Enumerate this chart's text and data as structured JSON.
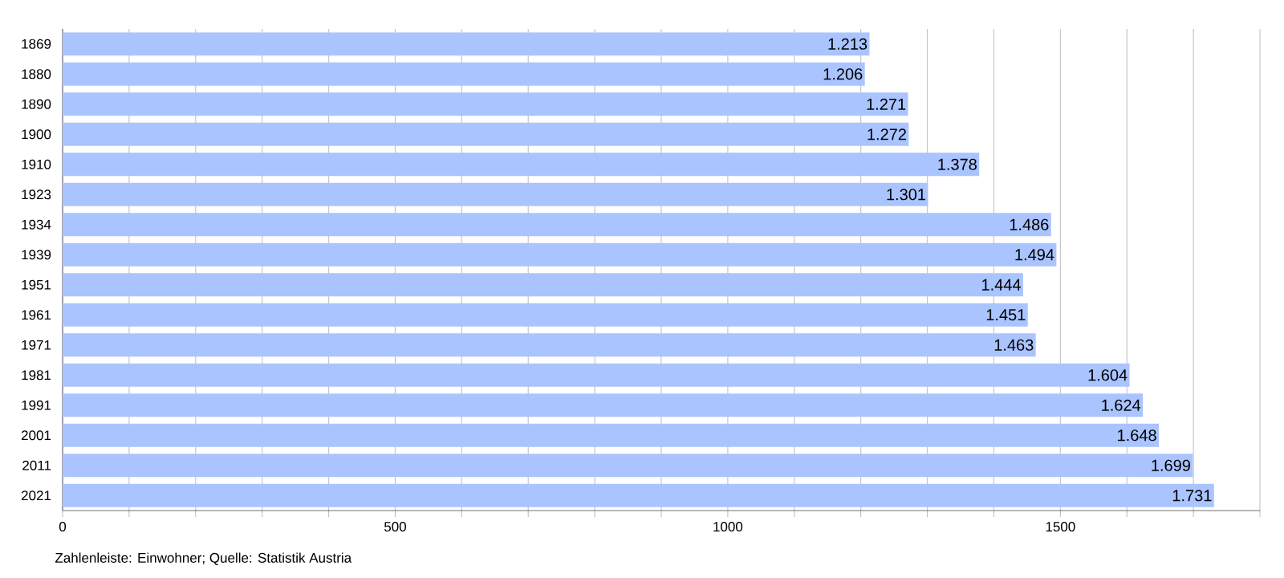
{
  "chart_data": {
    "type": "bar",
    "orientation": "horizontal",
    "categories": [
      "1869",
      "1880",
      "1890",
      "1900",
      "1910",
      "1923",
      "1934",
      "1939",
      "1951",
      "1961",
      "1971",
      "1981",
      "1991",
      "2001",
      "2011",
      "2021"
    ],
    "values": [
      1213,
      1206,
      1271,
      1272,
      1378,
      1301,
      1486,
      1494,
      1444,
      1451,
      1463,
      1604,
      1624,
      1648,
      1699,
      1731
    ],
    "value_labels": [
      "1.213",
      "1.206",
      "1.271",
      "1.272",
      "1.378",
      "1.301",
      "1.486",
      "1.494",
      "1.444",
      "1.451",
      "1.463",
      "1.604",
      "1.624",
      "1.648",
      "1.699",
      "1.731"
    ],
    "color": "#aac4ff",
    "xlim": [
      0,
      1800
    ],
    "xticks": [
      0,
      {
        "value": 100,
        "label": null
      },
      {
        "value": 200,
        "label": null
      },
      {
        "value": 300,
        "label": null
      },
      {
        "value": 400,
        "label": null
      },
      500,
      {
        "value": 600,
        "label": null
      },
      {
        "value": 700,
        "label": null
      },
      {
        "value": 800,
        "label": null
      },
      {
        "value": 900,
        "label": null
      },
      1000,
      {
        "value": 1100,
        "label": null
      },
      {
        "value": 1200,
        "label": null
      },
      {
        "value": 1300,
        "label": null
      },
      {
        "value": 1400,
        "label": null
      },
      1500,
      {
        "value": 1600,
        "label": null
      },
      {
        "value": 1700,
        "label": null
      },
      {
        "value": 1800,
        "label": null
      }
    ],
    "grid": "x",
    "annotations": [
      "Zahlenleiste: Einwohner; Quelle: Statistik Austria"
    ]
  }
}
